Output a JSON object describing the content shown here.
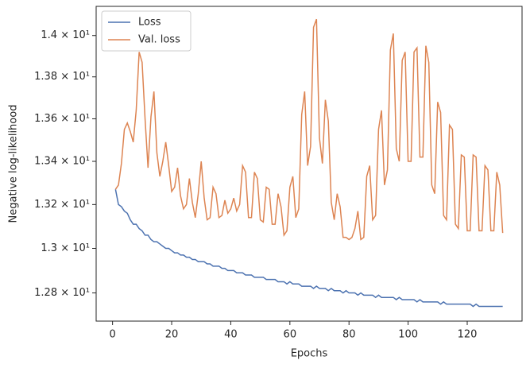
{
  "chart_data": {
    "type": "line",
    "xlabel": "Epochs",
    "ylabel": "Negative log-likelihood",
    "x": [
      1,
      2,
      3,
      4,
      5,
      6,
      7,
      8,
      9,
      10,
      11,
      12,
      13,
      14,
      15,
      16,
      17,
      18,
      19,
      20,
      21,
      22,
      23,
      24,
      25,
      26,
      27,
      28,
      29,
      30,
      31,
      32,
      33,
      34,
      35,
      36,
      37,
      38,
      39,
      40,
      41,
      42,
      43,
      44,
      45,
      46,
      47,
      48,
      49,
      50,
      51,
      52,
      53,
      54,
      55,
      56,
      57,
      58,
      59,
      60,
      61,
      62,
      63,
      64,
      65,
      66,
      67,
      68,
      69,
      70,
      71,
      72,
      73,
      74,
      75,
      76,
      77,
      78,
      79,
      80,
      81,
      82,
      83,
      84,
      85,
      86,
      87,
      88,
      89,
      90,
      91,
      92,
      93,
      94,
      95,
      96,
      97,
      98,
      99,
      100,
      101,
      102,
      103,
      104,
      105,
      106,
      107,
      108,
      109,
      110,
      111,
      112,
      113,
      114,
      115,
      116,
      117,
      118,
      119,
      120,
      121,
      122,
      123,
      124,
      125,
      126,
      127,
      128,
      129,
      130,
      131,
      132
    ],
    "series": [
      {
        "name": "Loss",
        "color": "#4c72b0",
        "values": [
          13.27,
          13.2,
          13.19,
          13.17,
          13.16,
          13.13,
          13.11,
          13.11,
          13.09,
          13.08,
          13.06,
          13.06,
          13.04,
          13.03,
          13.03,
          13.02,
          13.01,
          13.0,
          13.0,
          12.99,
          12.98,
          12.98,
          12.97,
          12.97,
          12.96,
          12.96,
          12.95,
          12.95,
          12.94,
          12.94,
          12.94,
          12.93,
          12.93,
          12.92,
          12.92,
          12.92,
          12.91,
          12.91,
          12.9,
          12.9,
          12.9,
          12.89,
          12.89,
          12.89,
          12.88,
          12.88,
          12.88,
          12.87,
          12.87,
          12.87,
          12.87,
          12.86,
          12.86,
          12.86,
          12.86,
          12.85,
          12.85,
          12.85,
          12.84,
          12.85,
          12.84,
          12.84,
          12.84,
          12.83,
          12.83,
          12.83,
          12.83,
          12.82,
          12.83,
          12.82,
          12.82,
          12.82,
          12.81,
          12.82,
          12.81,
          12.81,
          12.81,
          12.8,
          12.81,
          12.8,
          12.8,
          12.8,
          12.79,
          12.8,
          12.79,
          12.79,
          12.79,
          12.79,
          12.78,
          12.79,
          12.78,
          12.78,
          12.78,
          12.78,
          12.78,
          12.77,
          12.78,
          12.77,
          12.77,
          12.77,
          12.77,
          12.77,
          12.76,
          12.77,
          12.76,
          12.76,
          12.76,
          12.76,
          12.76,
          12.76,
          12.75,
          12.76,
          12.75,
          12.75,
          12.75,
          12.75,
          12.75,
          12.75,
          12.75,
          12.75,
          12.75,
          12.74,
          12.75,
          12.74,
          12.74,
          12.74,
          12.74,
          12.74,
          12.74,
          12.74,
          12.74,
          12.74
        ]
      },
      {
        "name": "Val. loss",
        "color": "#dd8452",
        "values": [
          13.27,
          13.29,
          13.39,
          13.55,
          13.58,
          13.54,
          13.49,
          13.64,
          13.92,
          13.87,
          13.6,
          13.37,
          13.61,
          13.73,
          13.44,
          13.33,
          13.4,
          13.49,
          13.38,
          13.26,
          13.28,
          13.37,
          13.24,
          13.18,
          13.2,
          13.32,
          13.21,
          13.14,
          13.25,
          13.4,
          13.23,
          13.13,
          13.14,
          13.28,
          13.25,
          13.14,
          13.15,
          13.22,
          13.16,
          13.18,
          13.23,
          13.17,
          13.2,
          13.38,
          13.35,
          13.14,
          13.14,
          13.35,
          13.32,
          13.13,
          13.12,
          13.28,
          13.27,
          13.11,
          13.11,
          13.25,
          13.19,
          13.06,
          13.08,
          13.28,
          13.33,
          13.14,
          13.18,
          13.62,
          13.73,
          13.38,
          13.47,
          14.04,
          14.08,
          13.51,
          13.39,
          13.69,
          13.59,
          13.21,
          13.13,
          13.25,
          13.19,
          13.05,
          13.05,
          13.04,
          13.05,
          13.09,
          13.17,
          13.04,
          13.05,
          13.33,
          13.38,
          13.13,
          13.15,
          13.55,
          13.64,
          13.29,
          13.36,
          13.93,
          14.01,
          13.46,
          13.4,
          13.88,
          13.92,
          13.4,
          13.4,
          13.92,
          13.94,
          13.42,
          13.42,
          13.95,
          13.87,
          13.29,
          13.25,
          13.68,
          13.63,
          13.15,
          13.13,
          13.57,
          13.55,
          13.11,
          13.09,
          13.43,
          13.42,
          13.08,
          13.08,
          13.43,
          13.42,
          13.08,
          13.08,
          13.38,
          13.36,
          13.08,
          13.08,
          13.35,
          13.29,
          13.07
        ]
      }
    ],
    "xlim": [
      -5.55,
      138.55
    ],
    "xticks": [
      0,
      20,
      40,
      60,
      80,
      100,
      120
    ],
    "ylim": [
      12.675,
      14.143
    ],
    "yscale": "log",
    "yticks": [
      {
        "value": 12.8,
        "label": "1.28 × 10¹"
      },
      {
        "value": 13.0,
        "label": "1.3 × 10¹"
      },
      {
        "value": 13.2,
        "label": "1.32 × 10¹"
      },
      {
        "value": 13.4,
        "label": "1.34 × 10¹"
      },
      {
        "value": 13.6,
        "label": "1.36 × 10¹"
      },
      {
        "value": 13.8,
        "label": "1.38 × 10¹"
      },
      {
        "value": 14.0,
        "label": "1.4 × 10¹"
      }
    ],
    "legend": "upper left",
    "grid": false
  }
}
